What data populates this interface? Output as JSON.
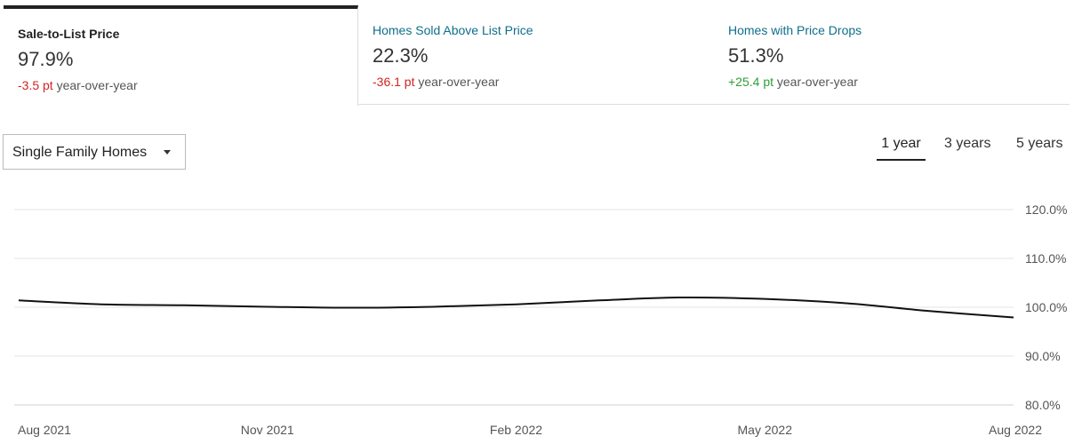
{
  "tabs": [
    {
      "label": "Sale-to-List Price",
      "value": "97.9%",
      "delta": "-3.5 pt",
      "delta_suffix": "year-over-year"
    },
    {
      "label": "Homes Sold Above List Price",
      "value": "22.3%",
      "delta": "-36.1 pt",
      "delta_suffix": "year-over-year"
    },
    {
      "label": "Homes with Price Drops",
      "value": "51.3%",
      "delta": "+25.4 pt",
      "delta_suffix": "year-over-year"
    }
  ],
  "filter": {
    "selected": "Single Family Homes"
  },
  "ranges": [
    "1 year",
    "3 years",
    "5 years"
  ],
  "active_range": "1 year",
  "colors": {
    "line": "#111111",
    "negative": "#d22323",
    "positive": "#2e9e3a",
    "link": "#0e6f8a"
  },
  "chart_data": {
    "type": "line",
    "title": "",
    "xlabel": "",
    "ylabel": "",
    "x": [
      "Aug 2021",
      "Sep 2021",
      "Oct 2021",
      "Nov 2021",
      "Dec 2021",
      "Jan 2022",
      "Feb 2022",
      "Mar 2022",
      "Apr 2022",
      "May 2022",
      "Jun 2022",
      "Jul 2022",
      "Aug 2022"
    ],
    "series": [
      {
        "values": [
          101.4,
          100.6,
          100.4,
          100.1,
          99.9,
          100.1,
          100.6,
          101.4,
          102.0,
          101.7,
          100.8,
          99.2,
          97.9
        ]
      }
    ],
    "x_ticks": [
      "Aug 2021",
      "Nov 2021",
      "Feb 2022",
      "May 2022",
      "Aug 2022"
    ],
    "y_ticks": [
      "120.0%",
      "110.0%",
      "100.0%",
      "90.0%",
      "80.0%"
    ],
    "y_tick_values": [
      120,
      110,
      100,
      90,
      80
    ],
    "ylim": [
      80,
      120
    ],
    "grid": true,
    "legend": "none"
  }
}
